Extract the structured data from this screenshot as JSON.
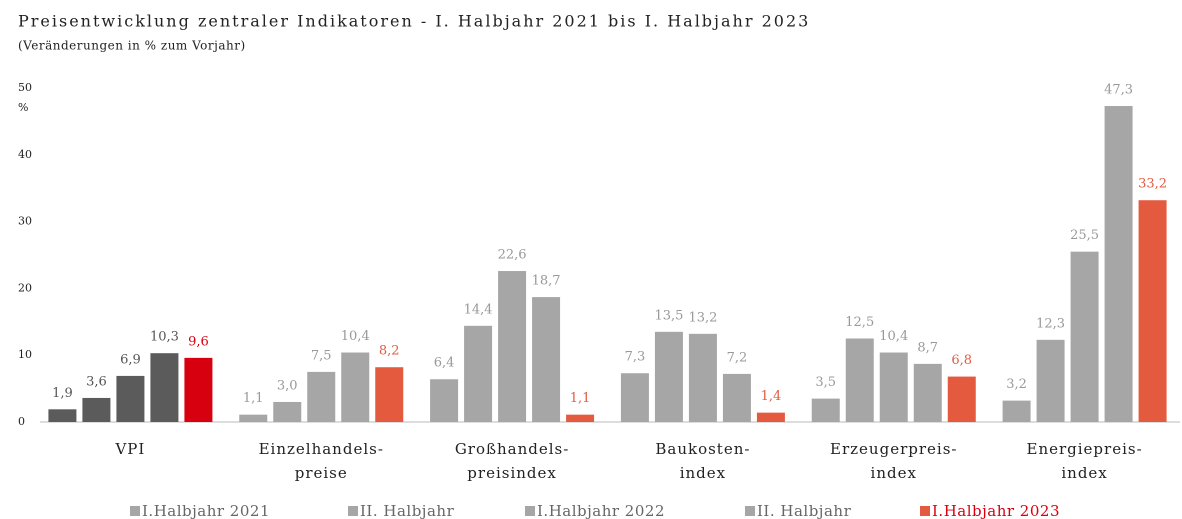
{
  "chart_data": {
    "type": "bar",
    "title": "Preisentwicklung zentraler Indikatoren - I. Halbjahr 2021 bis I. Halbjahr 2023",
    "subtitle": "(Veränderungen in % zum Vorjahr)",
    "y_unit": "%",
    "categories": [
      "VPI",
      "Einzelhandels-\npreise",
      "Großhandels-\npreisindex",
      "Baukosten-\nindex",
      "Erzeugerpreis-\nindex",
      "Energiepreis-\nindex"
    ],
    "series": [
      {
        "name": "I.Halbjahr 2021",
        "color": "#a6a6a6",
        "colors": [
          "#5b5b5b",
          "#a6a6a6",
          "#a6a6a6",
          "#a6a6a6",
          "#a6a6a6",
          "#a6a6a6"
        ],
        "values": [
          1.9,
          1.1,
          6.4,
          7.3,
          3.5,
          3.2
        ],
        "value_labels": [
          "1,9",
          "1,1",
          "6,4",
          "7,3",
          "3,5",
          "3,2"
        ]
      },
      {
        "name": "II. Halbjahr",
        "color": "#a6a6a6",
        "colors": [
          "#5b5b5b",
          "#a6a6a6",
          "#a6a6a6",
          "#a6a6a6",
          "#a6a6a6",
          "#a6a6a6"
        ],
        "values": [
          3.6,
          3.0,
          14.4,
          13.5,
          12.5,
          12.3
        ],
        "value_labels": [
          "3,6",
          "3,0",
          "14,4",
          "13,5",
          "12,5",
          "12,3"
        ]
      },
      {
        "name": "I.Halbjahr 2022",
        "color": "#a6a6a6",
        "colors": [
          "#5b5b5b",
          "#a6a6a6",
          "#a6a6a6",
          "#a6a6a6",
          "#a6a6a6",
          "#a6a6a6"
        ],
        "values": [
          6.9,
          7.5,
          22.6,
          13.2,
          10.4,
          25.5
        ],
        "value_labels": [
          "6,9",
          "7,5",
          "22,6",
          "13,2",
          "10,4",
          "25,5"
        ]
      },
      {
        "name": "II. Halbjahr",
        "color": "#a6a6a6",
        "colors": [
          "#5b5b5b",
          "#a6a6a6",
          "#a6a6a6",
          "#a6a6a6",
          "#a6a6a6",
          "#a6a6a6"
        ],
        "values": [
          10.3,
          10.4,
          18.7,
          7.2,
          8.7,
          47.3
        ],
        "value_labels": [
          "10,3",
          "10,4",
          "18,7",
          "7,2",
          "8,7",
          "47,3"
        ]
      },
      {
        "name": "I.Halbjahr 2023",
        "color": "#e45a3f",
        "colors": [
          "#d7000f",
          "#e45a3f",
          "#e45a3f",
          "#e45a3f",
          "#e45a3f",
          "#e45a3f"
        ],
        "values": [
          9.6,
          8.2,
          1.1,
          1.4,
          6.8,
          33.2
        ],
        "value_labels": [
          "9,6",
          "8,2",
          "1,1",
          "1,4",
          "6,8",
          "33,2"
        ]
      }
    ],
    "ylim": [
      0,
      50
    ],
    "yticks": [
      0,
      10,
      20,
      30,
      40,
      50
    ],
    "legend": "bottom"
  }
}
